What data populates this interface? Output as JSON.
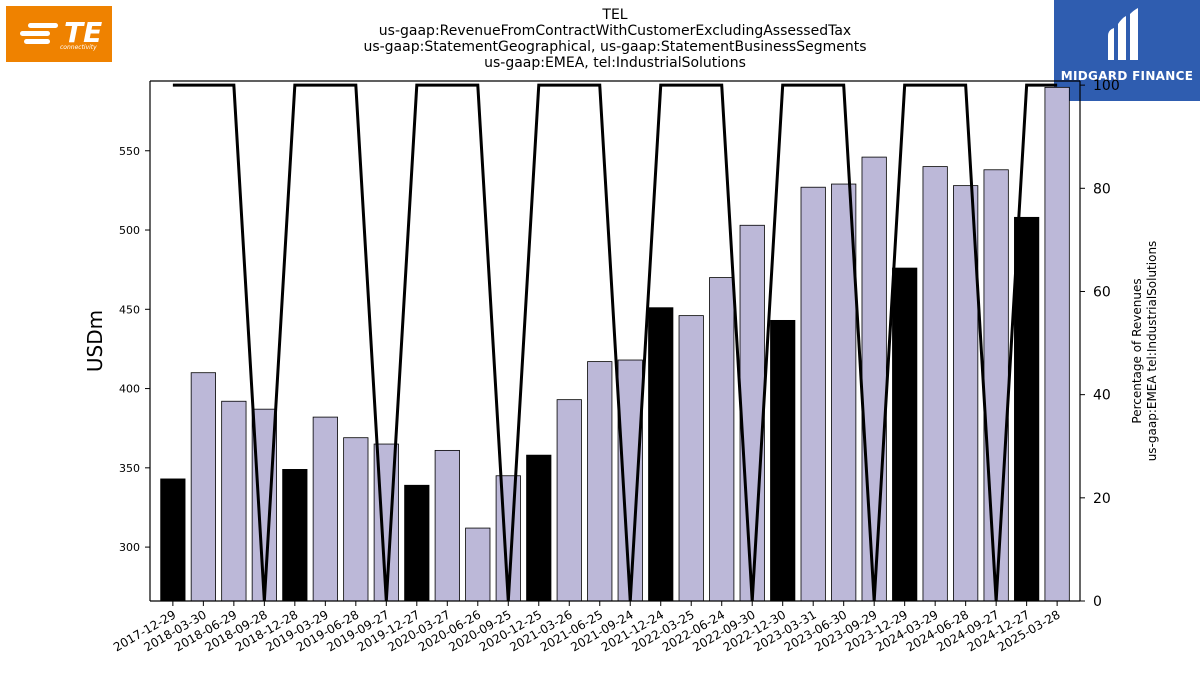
{
  "header": {
    "title_lines": [
      "TEL",
      "us-gaap:RevenueFromContractWithCustomerExcludingAssessedTax",
      "us-gaap:StatementGeographical, us-gaap:StatementBusinessSegments",
      "us-gaap:EMEA, tel:IndustrialSolutions"
    ]
  },
  "logos": {
    "left": {
      "text": "TE",
      "subtext": "connectivity",
      "color": "#ef8200"
    },
    "right": {
      "text": "MIDGARD FINANCE",
      "color": "#2f5db0"
    }
  },
  "chart_data": {
    "type": "bar",
    "categories": [
      "2017-12-29",
      "2018-03-30",
      "2018-06-29",
      "2018-09-28",
      "2018-12-28",
      "2019-03-29",
      "2019-06-28",
      "2019-09-27",
      "2019-12-27",
      "2020-03-27",
      "2020-06-26",
      "2020-09-25",
      "2020-12-25",
      "2021-03-26",
      "2021-06-25",
      "2021-09-24",
      "2021-12-24",
      "2022-03-25",
      "2022-06-24",
      "2022-09-30",
      "2022-12-30",
      "2023-03-31",
      "2023-06-30",
      "2023-09-29",
      "2023-12-29",
      "2024-03-29",
      "2024-06-28",
      "2024-09-27",
      "2024-12-27",
      "2025-03-28"
    ],
    "series": [
      {
        "axis": "left",
        "values": [
          343,
          410,
          392,
          387,
          349,
          382,
          369,
          365,
          339,
          361,
          312,
          345,
          358,
          393,
          417,
          418,
          451,
          446,
          470,
          503,
          443,
          527,
          529,
          546,
          476,
          540,
          528,
          538,
          508,
          590
        ],
        "colors": [
          "#000000",
          "#bcb8d8",
          "#bcb8d8",
          "#bcb8d8",
          "#000000",
          "#bcb8d8",
          "#bcb8d8",
          "#bcb8d8",
          "#000000",
          "#bcb8d8",
          "#bcb8d8",
          "#bcb8d8",
          "#000000",
          "#bcb8d8",
          "#bcb8d8",
          "#bcb8d8",
          "#000000",
          "#bcb8d8",
          "#bcb8d8",
          "#bcb8d8",
          "#000000",
          "#bcb8d8",
          "#bcb8d8",
          "#bcb8d8",
          "#000000",
          "#bcb8d8",
          "#bcb8d8",
          "#bcb8d8",
          "#000000",
          "#bcb8d8"
        ]
      },
      {
        "axis": "right",
        "type": "line",
        "values": [
          100,
          100,
          100,
          0,
          100,
          100,
          100,
          0,
          100,
          100,
          100,
          0,
          100,
          100,
          100,
          0,
          100,
          100,
          100,
          0,
          100,
          100,
          100,
          0,
          100,
          100,
          100,
          0,
          100,
          100
        ],
        "color": "#000000"
      }
    ],
    "ylabel": "USDm",
    "y2label_lines": [
      "Percentage of Revenues",
      "us-gaap:EMEA tel:IndustrialSolutions"
    ],
    "ylim": [
      266,
      594
    ],
    "yticks": [
      300,
      350,
      400,
      450,
      500,
      550
    ],
    "y2lim": [
      0,
      100.8
    ],
    "y2ticks": [
      0,
      20,
      40,
      60,
      80,
      100
    ],
    "grid": false
  }
}
